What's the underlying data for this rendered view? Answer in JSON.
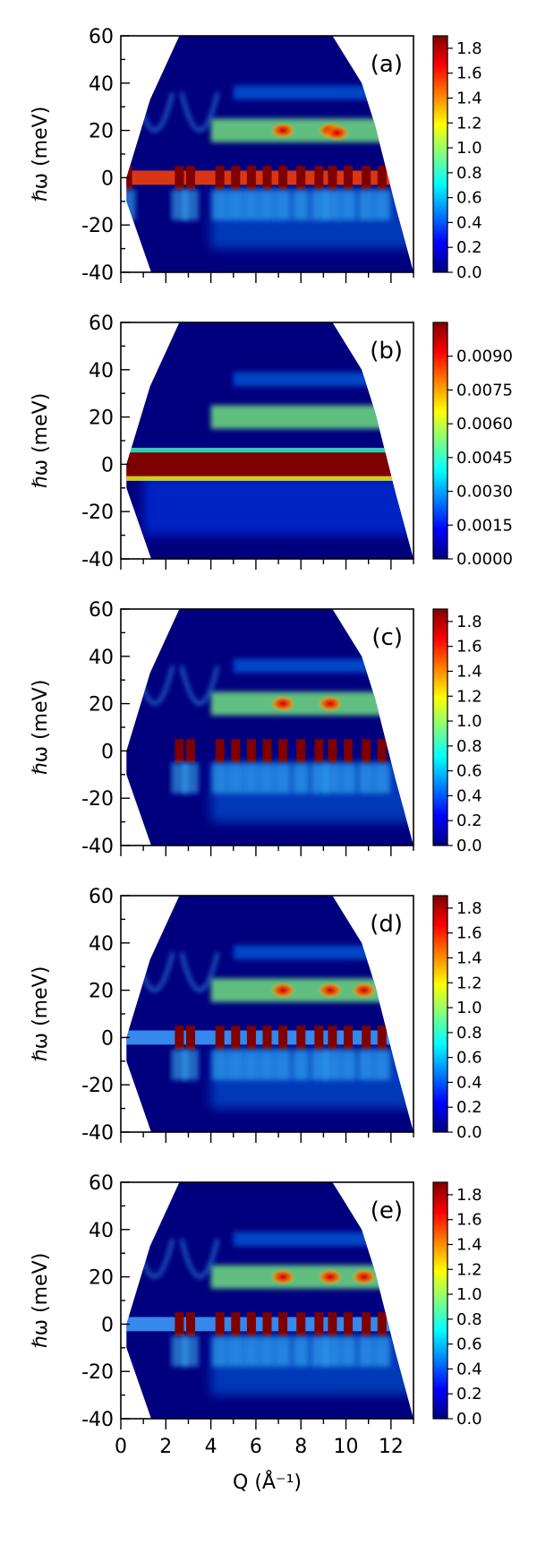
{
  "chart_data": [
    {
      "type": "heatmap",
      "panel_label": "(a)",
      "ylabel": "ℏω (meV)",
      "xlim": [
        0,
        13
      ],
      "ylim": [
        -40,
        60
      ],
      "y_ticks": [
        "60",
        "40",
        "20",
        "0",
        "-20",
        "-40"
      ],
      "colorbar": {
        "range": [
          0.0,
          1.9
        ],
        "ticks": [
          "1.8",
          "1.6",
          "1.4",
          "1.2",
          "1.0",
          "0.8",
          "0.6",
          "0.4",
          "0.2",
          "0.0"
        ]
      },
      "features": {
        "elastic_line_meV": 0,
        "phonon_bands_meV": [
          20,
          36
        ],
        "bragg_Q": [
          0.3,
          2.6,
          3.1,
          4.4,
          5.1,
          5.8,
          6.5,
          7.2,
          8.0,
          8.8,
          9.4,
          10.1,
          10.9,
          11.6
        ],
        "hot_spots": [
          {
            "Q": 7.2,
            "E": 20
          },
          {
            "Q": 9.3,
            "E": 20
          },
          {
            "Q": 9.6,
            "E": 19
          }
        ],
        "elastic_strip_from_Q": 0.2
      }
    },
    {
      "type": "heatmap",
      "panel_label": "(b)",
      "ylabel": "ℏω (meV)",
      "xlim": [
        0,
        13
      ],
      "ylim": [
        -40,
        60
      ],
      "y_ticks": [
        "60",
        "40",
        "20",
        "0",
        "-20",
        "-40"
      ],
      "colorbar": {
        "range": [
          0.0,
          0.0105
        ],
        "ticks": [
          "0.0090",
          "0.0075",
          "0.0060",
          "0.0045",
          "0.0030",
          "0.0015",
          "0.0000"
        ]
      },
      "features": {
        "elastic_line_meV": 0,
        "phonon_bands_meV": [
          20,
          36
        ],
        "bragg_Q": [],
        "hot_spots": [],
        "elastic_strip_from_Q": 0.2
      }
    },
    {
      "type": "heatmap",
      "panel_label": "(c)",
      "ylabel": "ℏω (meV)",
      "xlim": [
        0,
        13
      ],
      "ylim": [
        -40,
        60
      ],
      "y_ticks": [
        "60",
        "40",
        "20",
        "0",
        "-20",
        "-40"
      ],
      "colorbar": {
        "range": [
          0.0,
          1.9
        ],
        "ticks": [
          "1.8",
          "1.6",
          "1.4",
          "1.2",
          "1.0",
          "0.8",
          "0.6",
          "0.4",
          "0.2",
          "0.0"
        ]
      },
      "features": {
        "elastic_line_meV": 0,
        "phonon_bands_meV": [
          20,
          36
        ],
        "bragg_Q": [
          2.6,
          3.1,
          4.4,
          5.1,
          5.8,
          6.5,
          7.2,
          8.0,
          8.8,
          9.4,
          10.1,
          10.9,
          11.6
        ],
        "hot_spots": [
          {
            "Q": 7.2,
            "E": 20
          },
          {
            "Q": 9.3,
            "E": 20
          }
        ],
        "elastic_strip_from_Q": null
      }
    },
    {
      "type": "heatmap",
      "panel_label": "(d)",
      "ylabel": "ℏω (meV)",
      "xlim": [
        0,
        13
      ],
      "ylim": [
        -40,
        60
      ],
      "y_ticks": [
        "60",
        "40",
        "20",
        "0",
        "-20",
        "-40"
      ],
      "colorbar": {
        "range": [
          0.0,
          1.9
        ],
        "ticks": [
          "1.8",
          "1.6",
          "1.4",
          "1.2",
          "1.0",
          "0.8",
          "0.6",
          "0.4",
          "0.2",
          "0.0"
        ]
      },
      "features": {
        "elastic_line_meV": 0,
        "phonon_bands_meV": [
          20,
          36
        ],
        "bragg_Q": [
          2.6,
          3.1,
          4.4,
          5.1,
          5.8,
          6.5,
          7.2,
          8.0,
          8.8,
          9.4,
          10.1,
          10.9,
          11.6
        ],
        "hot_spots": [
          {
            "Q": 7.2,
            "E": 20
          },
          {
            "Q": 9.3,
            "E": 20
          },
          {
            "Q": 10.8,
            "E": 20
          }
        ],
        "elastic_strip_from_Q": 0.2
      }
    },
    {
      "type": "heatmap",
      "panel_label": "(e)",
      "ylabel": "ℏω (meV)",
      "xlim": [
        0,
        13
      ],
      "ylim": [
        -40,
        60
      ],
      "y_ticks": [
        "60",
        "40",
        "20",
        "0",
        "-20",
        "-40"
      ],
      "x_ticks": [
        "0",
        "2",
        "4",
        "6",
        "8",
        "10",
        "12"
      ],
      "xlabel": "Q (Å⁻¹)",
      "colorbar": {
        "range": [
          0.0,
          1.9
        ],
        "ticks": [
          "1.8",
          "1.6",
          "1.4",
          "1.2",
          "1.0",
          "0.8",
          "0.6",
          "0.4",
          "0.2",
          "0.0"
        ]
      },
      "features": {
        "elastic_line_meV": 0,
        "phonon_bands_meV": [
          20,
          36
        ],
        "bragg_Q": [
          2.6,
          3.1,
          4.4,
          5.1,
          5.8,
          6.5,
          7.2,
          8.0,
          8.8,
          9.4,
          10.1,
          10.9,
          11.6
        ],
        "hot_spots": [
          {
            "Q": 7.2,
            "E": 20
          },
          {
            "Q": 9.3,
            "E": 20
          },
          {
            "Q": 10.8,
            "E": 20
          }
        ],
        "elastic_strip_from_Q": 0.2
      }
    }
  ],
  "colormap": [
    "#00007f",
    "#0000ff",
    "#0080ff",
    "#00ffff",
    "#80ff80",
    "#ffff00",
    "#ff8000",
    "#ff0000",
    "#7f0000"
  ]
}
